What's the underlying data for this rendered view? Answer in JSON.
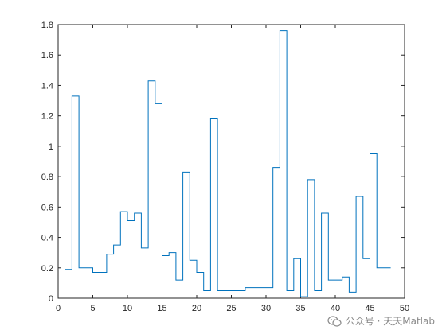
{
  "chart_data": {
    "type": "line",
    "step": "stairs",
    "title": "",
    "xlabel": "",
    "ylabel": "",
    "xlim": [
      0,
      50
    ],
    "ylim": [
      0,
      1.8
    ],
    "x_ticks": [
      "0",
      "5",
      "10",
      "15",
      "20",
      "25",
      "30",
      "35",
      "40",
      "45",
      "50"
    ],
    "y_ticks": [
      "0",
      "0.2",
      "0.4",
      "0.6",
      "0.8",
      "1",
      "1.2",
      "1.4",
      "1.6",
      "1.8"
    ],
    "grid": false,
    "series": [
      {
        "color": "#0072BD",
        "x": [
          1,
          2,
          3,
          4,
          5,
          6,
          7,
          8,
          9,
          10,
          11,
          12,
          13,
          14,
          15,
          16,
          17,
          18,
          19,
          20,
          21,
          22,
          23,
          24,
          25,
          26,
          27,
          28,
          29,
          30,
          31,
          32,
          33,
          34,
          35,
          36,
          37,
          38,
          39,
          40,
          41,
          42,
          43,
          44,
          45,
          46,
          47,
          48
        ],
        "y": [
          0.19,
          1.33,
          0.2,
          0.2,
          0.17,
          0.17,
          0.29,
          0.35,
          0.57,
          0.51,
          0.56,
          0.33,
          1.43,
          1.28,
          0.28,
          0.3,
          0.12,
          0.83,
          0.25,
          0.17,
          0.05,
          1.18,
          0.05,
          0.05,
          0.05,
          0.05,
          0.07,
          0.07,
          0.07,
          0.07,
          0.86,
          1.76,
          0.05,
          0.26,
          0.01,
          0.78,
          0.05,
          0.56,
          0.12,
          0.12,
          0.14,
          0.04,
          0.67,
          0.26,
          0.95,
          0.2,
          0.2,
          0.2
        ]
      }
    ]
  },
  "watermark": {
    "text": "公众号 · 天天Matlab",
    "icon": "wechat-icon"
  }
}
